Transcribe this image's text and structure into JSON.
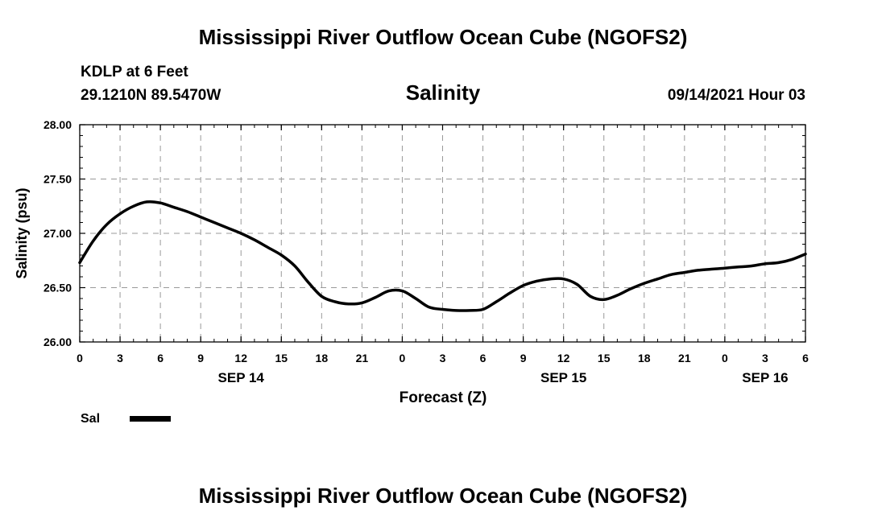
{
  "page": {
    "title_top": "Mississippi River Outflow Ocean Cube (NGOFS2)",
    "title_bottom": "Mississippi River Outflow Ocean Cube (NGOFS2)",
    "station": "KDLP at 6 Feet",
    "location": "29.1210N  89.5470W",
    "datetime": "09/14/2021 Hour 03"
  },
  "chart_data": {
    "type": "line",
    "title": "Salinity",
    "xlabel": "Forecast (Z)",
    "ylabel": "Salinity (psu)",
    "ylim": [
      26.0,
      28.0
    ],
    "yticks": [
      26.0,
      26.5,
      27.0,
      27.5,
      28.0
    ],
    "ytick_labels": [
      "26.00",
      "26.50",
      "27.00",
      "27.50",
      "28.00"
    ],
    "xlim": [
      0,
      54
    ],
    "xticks": [
      0,
      3,
      6,
      9,
      12,
      15,
      18,
      21,
      24,
      27,
      30,
      33,
      36,
      39,
      42,
      45,
      48,
      51,
      54
    ],
    "xtick_labels": [
      "0",
      "3",
      "6",
      "9",
      "12",
      "15",
      "18",
      "21",
      "0",
      "3",
      "6",
      "9",
      "12",
      "15",
      "18",
      "21",
      "0",
      "3",
      "6"
    ],
    "day_labels": [
      {
        "x": 12,
        "label": "SEP 14"
      },
      {
        "x": 36,
        "label": "SEP 15"
      },
      {
        "x": 51,
        "label": "SEP 16"
      }
    ],
    "grid": true,
    "legend_position": "bottom-left",
    "line_color": "#000000",
    "series": [
      {
        "name": "Sal",
        "x": [
          0,
          1,
          2,
          3,
          4,
          5,
          6,
          7,
          8,
          9,
          10,
          11,
          12,
          13,
          14,
          15,
          16,
          17,
          18,
          19,
          20,
          21,
          22,
          23,
          24,
          25,
          26,
          27,
          28,
          29,
          30,
          31,
          32,
          33,
          34,
          35,
          36,
          37,
          38,
          39,
          40,
          41,
          42,
          43,
          44,
          45,
          46,
          47,
          48,
          49,
          50,
          51,
          52,
          53,
          54
        ],
        "values": [
          26.73,
          26.93,
          27.08,
          27.18,
          27.25,
          27.29,
          27.28,
          27.24,
          27.2,
          27.15,
          27.1,
          27.05,
          27.0,
          26.94,
          26.87,
          26.8,
          26.7,
          26.55,
          26.42,
          26.37,
          26.35,
          26.36,
          26.41,
          26.47,
          26.47,
          26.4,
          26.32,
          26.3,
          26.29,
          26.29,
          26.3,
          26.37,
          26.45,
          26.52,
          26.56,
          26.58,
          26.58,
          26.53,
          26.42,
          26.39,
          26.43,
          26.49,
          26.54,
          26.58,
          26.62,
          26.64,
          26.66,
          26.67,
          26.68,
          26.69,
          26.7,
          26.72,
          26.73,
          26.76,
          26.81
        ]
      }
    ]
  }
}
